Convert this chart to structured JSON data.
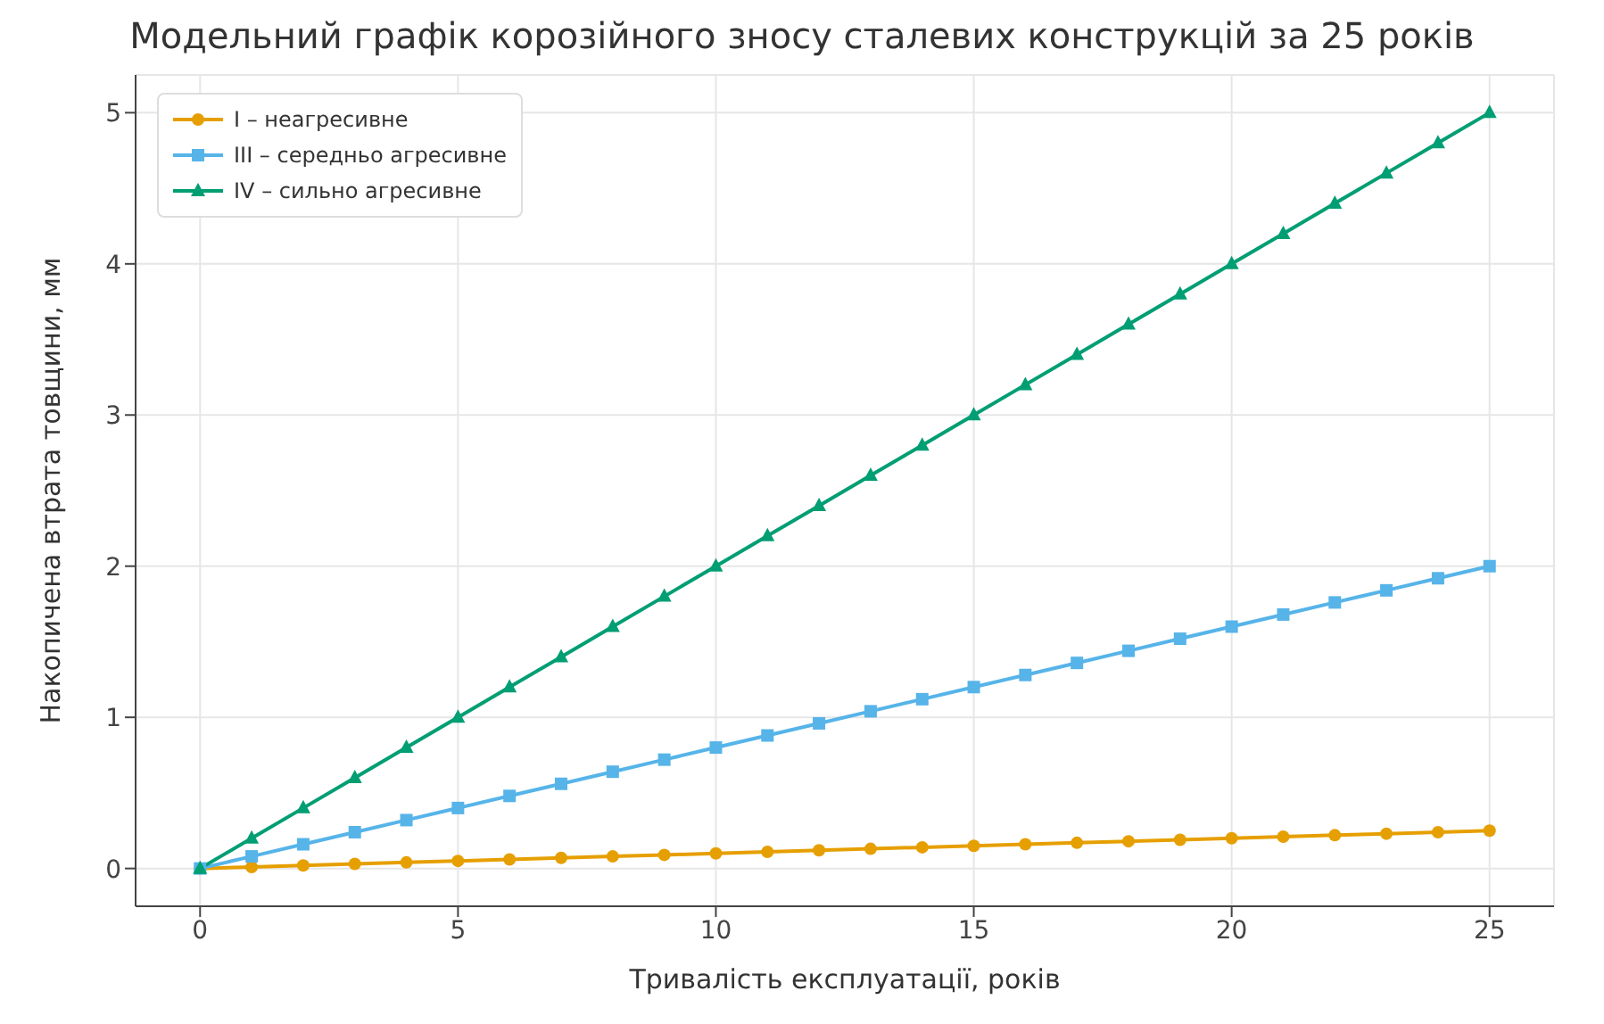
{
  "chart_data": {
    "type": "line",
    "title": "Модельний графік корозійного зносу сталевих конструкцій за 25 років",
    "xlabel": "Тривалість експлуатації, років",
    "ylabel": "Накопичена втрата товщини, мм",
    "x": [
      0,
      1,
      2,
      3,
      4,
      5,
      6,
      7,
      8,
      9,
      10,
      11,
      12,
      13,
      14,
      15,
      16,
      17,
      18,
      19,
      20,
      21,
      22,
      23,
      24,
      25
    ],
    "series": [
      {
        "name": "I – неагресивне",
        "color": "#e69f00",
        "marker": "circle",
        "values": [
          0,
          0.01,
          0.02,
          0.03,
          0.04,
          0.05,
          0.06,
          0.07,
          0.08,
          0.09,
          0.1,
          0.11,
          0.12,
          0.13,
          0.14,
          0.15,
          0.16,
          0.17,
          0.18,
          0.19,
          0.2,
          0.21,
          0.22,
          0.23,
          0.24,
          0.25
        ]
      },
      {
        "name": "III – середньо агресивне",
        "color": "#56b4e9",
        "marker": "square",
        "values": [
          0,
          0.08,
          0.16,
          0.24,
          0.32,
          0.4,
          0.48,
          0.56,
          0.64,
          0.72,
          0.8,
          0.88,
          0.96,
          1.04,
          1.12,
          1.2,
          1.28,
          1.36,
          1.44,
          1.52,
          1.6,
          1.68,
          1.76,
          1.84,
          1.92,
          2.0
        ]
      },
      {
        "name": "IV – сильно агресивне",
        "color": "#009e73",
        "marker": "triangle",
        "values": [
          0,
          0.2,
          0.4,
          0.6,
          0.8,
          1.0,
          1.2,
          1.4,
          1.6,
          1.8,
          2.0,
          2.2,
          2.4,
          2.6,
          2.8,
          3.0,
          3.2,
          3.4,
          3.6,
          3.8,
          4.0,
          4.2,
          4.4,
          4.6,
          4.8,
          5.0
        ]
      }
    ],
    "xlim": [
      -1.25,
      26.25
    ],
    "xticks": [
      0,
      5,
      10,
      15,
      20,
      25
    ],
    "ylim": [
      -0.25,
      5.25
    ],
    "yticks": [
      0,
      1,
      2,
      3,
      4,
      5
    ],
    "grid": true,
    "legend": "top left",
    "line_style": "solid"
  }
}
